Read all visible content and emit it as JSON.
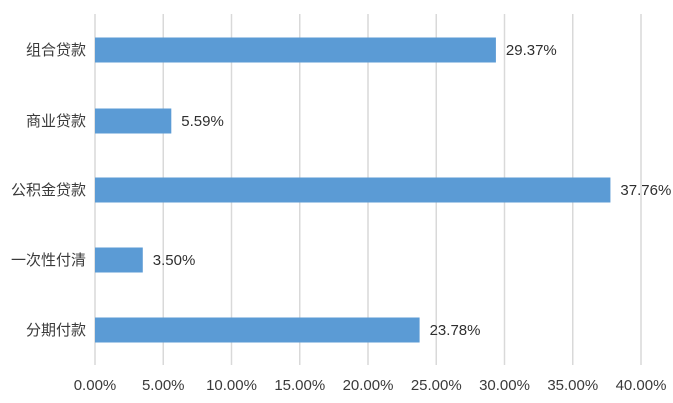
{
  "chart_data": {
    "type": "bar",
    "orientation": "horizontal",
    "title": "",
    "xlabel": "",
    "ylabel": "",
    "categories": [
      "组合贷款",
      "商业贷款",
      "公积金贷款",
      "一次性付清",
      "分期付款"
    ],
    "values": [
      29.37,
      5.59,
      37.76,
      3.5,
      23.78
    ],
    "data_labels": [
      "29.37%",
      "5.59%",
      "37.76%",
      "3.50%",
      "23.78%"
    ],
    "xlim": [
      0,
      40
    ],
    "x_ticks": [
      0,
      5,
      10,
      15,
      20,
      25,
      30,
      35,
      40
    ],
    "x_tick_labels": [
      "0.00%",
      "5.00%",
      "10.00%",
      "15.00%",
      "20.00%",
      "25.00%",
      "30.00%",
      "35.00%",
      "40.00%"
    ],
    "grid": "vertical",
    "legend": "none",
    "bar_color": "#5b9bd5",
    "grid_color": "#d9d9d9"
  }
}
